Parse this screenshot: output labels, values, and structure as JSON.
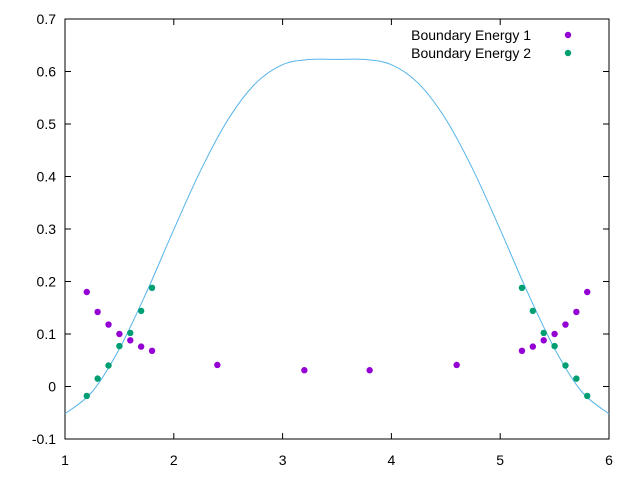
{
  "chart_data": {
    "type": "scatter",
    "title": "",
    "xlabel": "",
    "ylabel": "",
    "xlim": [
      1,
      6
    ],
    "ylim": [
      -0.1,
      0.7
    ],
    "x_ticks": [
      "1",
      "2",
      "3",
      "4",
      "5",
      "6"
    ],
    "y_ticks": [
      "-0.1",
      "0",
      "0.1",
      "0.2",
      "0.3",
      "0.4",
      "0.5",
      "0.6",
      "0.7"
    ],
    "grid": false,
    "legend_position": "top-right",
    "series": [
      {
        "name": "Boundary Energy 1",
        "kind": "points",
        "color": "#9400d3",
        "x": [
          1.2,
          1.3,
          1.4,
          1.5,
          1.6,
          1.7,
          1.8,
          2.4,
          3.2,
          3.8,
          4.6,
          5.2,
          5.3,
          5.4,
          5.5,
          5.6,
          5.7,
          5.8
        ],
        "y": [
          0.18,
          0.142,
          0.118,
          0.1,
          0.088,
          0.076,
          0.068,
          0.041,
          0.031,
          0.031,
          0.041,
          0.068,
          0.076,
          0.088,
          0.1,
          0.118,
          0.142,
          0.18
        ]
      },
      {
        "name": "Boundary Energy 2",
        "kind": "points",
        "color": "#009e73",
        "x": [
          1.2,
          1.3,
          1.4,
          1.5,
          1.6,
          1.7,
          1.8,
          5.2,
          5.3,
          5.4,
          5.5,
          5.6,
          5.7,
          5.8
        ],
        "y": [
          -0.018,
          0.015,
          0.04,
          0.077,
          0.102,
          0.144,
          0.188,
          0.188,
          0.144,
          0.102,
          0.077,
          0.04,
          0.015,
          -0.018
        ]
      },
      {
        "name": "",
        "kind": "curve",
        "color": "#56b4e9",
        "x": [
          1.0,
          1.25,
          1.5,
          1.75,
          2.0,
          2.25,
          2.5,
          2.75,
          3.0,
          3.25,
          3.5,
          3.75,
          4.0,
          4.25,
          4.5,
          4.75,
          5.0,
          5.25,
          5.5,
          5.75,
          6.0
        ],
        "y": [
          -0.052,
          -0.01,
          0.072,
          0.18,
          0.299,
          0.413,
          0.509,
          0.577,
          0.613,
          0.623,
          0.623,
          0.623,
          0.613,
          0.577,
          0.509,
          0.413,
          0.299,
          0.18,
          0.072,
          -0.01,
          -0.052
        ]
      }
    ]
  }
}
